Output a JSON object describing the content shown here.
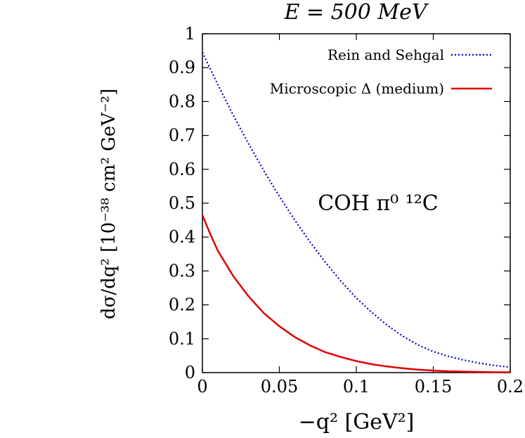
{
  "chart_data": {
    "type": "line",
    "title": "E = 500 MeV",
    "xlabel": "−q² [GeV²]",
    "ylabel": "dσ/dq² [10⁻³⁸ cm² GeV⁻²]",
    "annotation": "COH π⁰ ¹²C",
    "xlim": [
      0,
      0.2
    ],
    "ylim": [
      0,
      1
    ],
    "xticks": [
      "0",
      "0.05",
      "0.1",
      "0.15",
      "0.2"
    ],
    "yticks": [
      "0",
      "0.1",
      "0.2",
      "0.3",
      "0.4",
      "0.5",
      "0.6",
      "0.7",
      "0.8",
      "0.9",
      "1"
    ],
    "legend_position": "top-right",
    "grid": false,
    "series": [
      {
        "name": "Rein and Sehgal",
        "color": "#0000cc",
        "style": "dotted",
        "x": [
          0,
          0.01,
          0.02,
          0.03,
          0.04,
          0.05,
          0.06,
          0.07,
          0.08,
          0.09,
          0.1,
          0.11,
          0.12,
          0.13,
          0.14,
          0.15,
          0.16,
          0.17,
          0.18,
          0.19,
          0.2
        ],
        "y": [
          0.945,
          0.85,
          0.76,
          0.675,
          0.595,
          0.52,
          0.45,
          0.385,
          0.325,
          0.27,
          0.22,
          0.178,
          0.14,
          0.108,
          0.082,
          0.062,
          0.048,
          0.037,
          0.028,
          0.021,
          0.016
        ]
      },
      {
        "name": "Microscopic Δ (medium)",
        "color": "#e00000",
        "style": "solid",
        "x": [
          0,
          0.005,
          0.01,
          0.02,
          0.03,
          0.04,
          0.05,
          0.06,
          0.07,
          0.08,
          0.09,
          0.1,
          0.11,
          0.12,
          0.13,
          0.14,
          0.15,
          0.16,
          0.17,
          0.18,
          0.19,
          0.2
        ],
        "y": [
          0.465,
          0.41,
          0.36,
          0.285,
          0.225,
          0.175,
          0.137,
          0.105,
          0.08,
          0.06,
          0.046,
          0.034,
          0.025,
          0.018,
          0.013,
          0.009,
          0.006,
          0.004,
          0.003,
          0.002,
          0.001,
          0.001
        ]
      }
    ]
  }
}
